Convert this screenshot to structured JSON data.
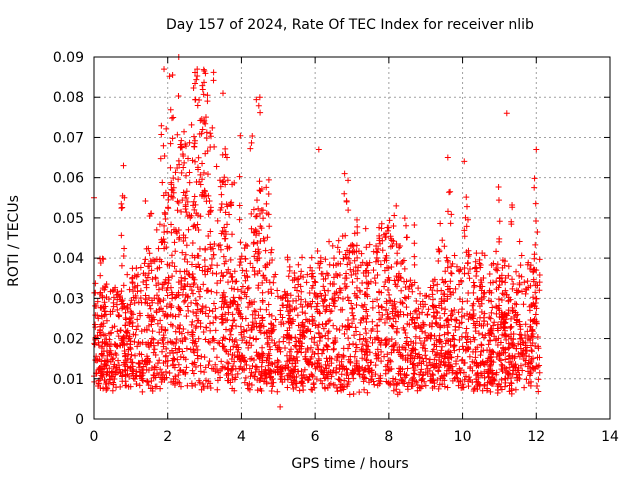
{
  "chart_data": {
    "type": "scatter",
    "title": "Day 157 of 2024, Rate Of TEC Index for receiver nlib",
    "xlabel": "GPS time / hours",
    "ylabel": "ROTI / TECUs",
    "xlim": [
      0,
      14
    ],
    "ylim": [
      0,
      0.09
    ],
    "xticks": [
      "0",
      "2",
      "4",
      "6",
      "8",
      "10",
      "12",
      "14"
    ],
    "yticks": [
      "0",
      "0.01",
      "0.02",
      "0.03",
      "0.04",
      "0.05",
      "0.06",
      "0.07",
      "0.08",
      "0.09"
    ],
    "grid": true,
    "marker": "+",
    "color": "#ff0000",
    "series": [
      {
        "name": "ROTI",
        "x_range_hours": [
          0,
          12.1
        ],
        "baseline_range": [
          0.01,
          0.03
        ],
        "trend": [
          [
            0.0,
            0.018
          ],
          [
            0.5,
            0.019
          ],
          [
            1.0,
            0.02
          ],
          [
            1.5,
            0.022
          ],
          [
            2.0,
            0.03
          ],
          [
            2.5,
            0.04
          ],
          [
            3.0,
            0.045
          ],
          [
            3.5,
            0.03
          ],
          [
            4.0,
            0.022
          ],
          [
            4.5,
            0.03
          ],
          [
            5.0,
            0.018
          ],
          [
            5.5,
            0.019
          ],
          [
            6.0,
            0.021
          ],
          [
            6.5,
            0.023
          ],
          [
            7.0,
            0.025
          ],
          [
            7.5,
            0.024
          ],
          [
            8.0,
            0.027
          ],
          [
            8.5,
            0.02
          ],
          [
            9.0,
            0.018
          ],
          [
            9.5,
            0.02
          ],
          [
            10.0,
            0.022
          ],
          [
            10.5,
            0.021
          ],
          [
            11.0,
            0.02
          ],
          [
            11.5,
            0.02
          ],
          [
            12.0,
            0.022
          ]
        ],
        "notable_points": [
          [
            0.0,
            0.055
          ],
          [
            0.8,
            0.063
          ],
          [
            1.9,
            0.087
          ],
          [
            2.3,
            0.09
          ],
          [
            2.8,
            0.087
          ],
          [
            3.5,
            0.081
          ],
          [
            4.5,
            0.08
          ],
          [
            5.05,
            0.003
          ],
          [
            6.1,
            0.067
          ],
          [
            6.8,
            0.061
          ],
          [
            8.2,
            0.053
          ],
          [
            9.6,
            0.065
          ],
          [
            11.2,
            0.076
          ],
          [
            12.0,
            0.067
          ]
        ]
      }
    ]
  }
}
